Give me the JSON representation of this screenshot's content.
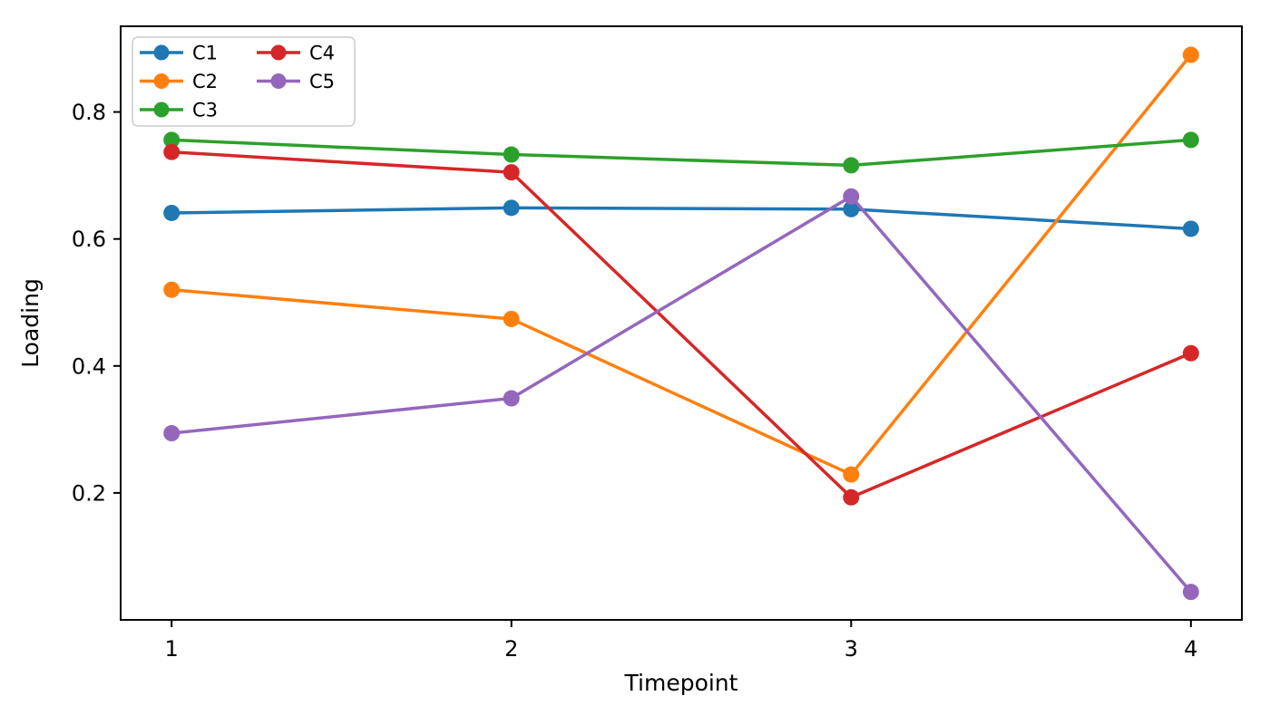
{
  "chart_data": {
    "type": "line",
    "title": "",
    "xlabel": "Timepoint",
    "ylabel": "Loading",
    "x": [
      1,
      2,
      3,
      4
    ],
    "xtick_labels": [
      "1",
      "2",
      "3",
      "4"
    ],
    "yticks": [
      0.2,
      0.4,
      0.6,
      0.8
    ],
    "ytick_labels": [
      "0.2",
      "0.4",
      "0.6",
      "0.8"
    ],
    "xlim": [
      0.85,
      4.15
    ],
    "ylim": [
      0,
      0.935
    ],
    "grid": false,
    "marker": "circle",
    "series": [
      {
        "name": "C1",
        "color": "#1f77b4",
        "values": [
          0.641,
          0.649,
          0.647,
          0.616
        ]
      },
      {
        "name": "C2",
        "color": "#ff7f0e",
        "values": [
          0.52,
          0.474,
          0.229,
          0.89
        ]
      },
      {
        "name": "C3",
        "color": "#2ca02c",
        "values": [
          0.756,
          0.733,
          0.716,
          0.756
        ]
      },
      {
        "name": "C4",
        "color": "#d62728",
        "values": [
          0.737,
          0.705,
          0.193,
          0.42
        ]
      },
      {
        "name": "C5",
        "color": "#9467bd",
        "values": [
          0.294,
          0.349,
          0.667,
          0.044
        ]
      }
    ],
    "legend": {
      "location": "upper-left",
      "columns": 2,
      "entries": [
        "C1",
        "C2",
        "C3",
        "C4",
        "C5"
      ]
    },
    "colors": {
      "spine": "#000000",
      "text": "#000000",
      "background": "#ffffff",
      "legend_border": "#cccccc",
      "legend_background": "#ffffff"
    }
  }
}
